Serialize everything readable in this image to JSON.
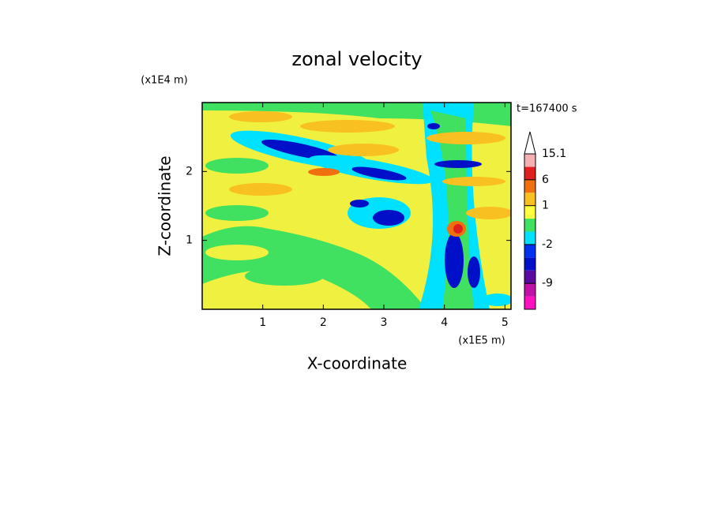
{
  "chart_data": {
    "type": "contour",
    "title": "zonal velocity",
    "x_label": "X-coordinate",
    "y_label": "Z-coordinate",
    "x_unit": "(x1E5 m)",
    "y_unit": "(x1E4 m)",
    "annotation": "t=167400 s",
    "xlim": [
      0,
      5.1
    ],
    "xticks": [
      1,
      2,
      3,
      4,
      5
    ],
    "ylim": [
      0,
      3
    ],
    "yticks": [
      1,
      2
    ],
    "colorbar": {
      "levels": [
        -15,
        -12,
        -9,
        -6,
        -3,
        -2,
        -1,
        0,
        1,
        3,
        6,
        10,
        15.1
      ],
      "colors": [
        "#ff10c0",
        "#c010a8",
        "#5a0aa0",
        "#0010c8",
        "#0030f0",
        "#00e0ff",
        "#40e060",
        "#ffff40",
        "#f8c020",
        "#f07010",
        "#e02020",
        "#f4b0b0"
      ],
      "ticks": [
        15.1,
        6,
        1,
        -2,
        -9
      ]
    }
  }
}
